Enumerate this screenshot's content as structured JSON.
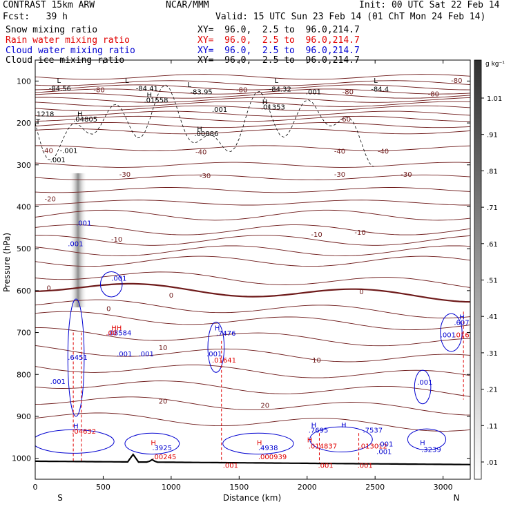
{
  "header": {
    "left_line1": "CONTRAST 15km ARW",
    "center_line1": "NCAR/MMM",
    "right_line1": "Init: 00 UTC Sat 22 Feb 14",
    "left_line2": "Fcst:   39 h",
    "right_line2": "Valid: 15 UTC Sun 23 Feb 14 (01 ChT Mon 24 Feb 14)",
    "fields": [
      {
        "name": "Snow mixing ratio",
        "xy": "XY=  96.0,  2.5 to  96.0,214.7",
        "color": "#000000"
      },
      {
        "name": "Rain water mixing ratio",
        "xy": "XY=  96.0,  2.5 to  96.0,214.7",
        "color": "#e00000"
      },
      {
        "name": "Cloud water mixing ratio",
        "xy": "XY=  96.0,  2.5 to  96.0,214.7",
        "color": "#0000d0"
      },
      {
        "name": "Cloud ice mixing ratio",
        "xy": "XY=  96.0,  2.5 to  96.0,214.7",
        "color": "#000000"
      }
    ]
  },
  "chart_data": {
    "type": "cross-section contour",
    "xlabel": "Distance (km)",
    "ylabel": "Pressure (hPa)",
    "xlim": [
      0,
      3200
    ],
    "ylim": [
      1050,
      50
    ],
    "x_ticks": [
      "0",
      "500",
      "1000",
      "1500",
      "2000",
      "2500",
      "3000"
    ],
    "y_ticks": [
      "100",
      "200",
      "300",
      "400",
      "500",
      "600",
      "700",
      "800",
      "900",
      "1000"
    ],
    "end_labels": {
      "left": "S",
      "right": "N"
    },
    "colorbar": {
      "unit": "g kg⁻¹",
      "ticks": [
        "1.01",
        ".91",
        ".81",
        ".71",
        ".61",
        ".51",
        ".41",
        ".31",
        ".21",
        ".11",
        ".01"
      ]
    },
    "temperature_contours": {
      "color": "#6e1a1a",
      "labeled_levels": [
        "-80",
        "-60",
        "-40",
        "-30",
        "-20",
        "-10",
        "0",
        "10",
        "20"
      ],
      "labels": [
        {
          "text": "-80",
          "x": 470,
          "p": 120
        },
        {
          "text": "-80",
          "x": 1520,
          "p": 120
        },
        {
          "text": "-80",
          "x": 2300,
          "p": 125
        },
        {
          "text": "-80",
          "x": 2930,
          "p": 130
        },
        {
          "text": "-80",
          "x": 3100,
          "p": 98
        },
        {
          "text": "-60",
          "x": 2280,
          "p": 190
        },
        {
          "text": "-40",
          "x": 90,
          "p": 265
        },
        {
          "text": "-40",
          "x": 1220,
          "p": 268
        },
        {
          "text": "-40",
          "x": 2240,
          "p": 267
        },
        {
          "text": "-40",
          "x": 2560,
          "p": 267
        },
        {
          "text": "-30",
          "x": 660,
          "p": 322
        },
        {
          "text": "-30",
          "x": 1250,
          "p": 325
        },
        {
          "text": "-30",
          "x": 2240,
          "p": 322
        },
        {
          "text": "-30",
          "x": 2730,
          "p": 322
        },
        {
          "text": "-20",
          "x": 110,
          "p": 380
        },
        {
          "text": "-10",
          "x": 600,
          "p": 477
        },
        {
          "text": "-10",
          "x": 2070,
          "p": 465
        },
        {
          "text": "-10",
          "x": 2390,
          "p": 460
        },
        {
          "text": "0",
          "x": 100,
          "p": 593
        },
        {
          "text": "0",
          "x": 1000,
          "p": 610
        },
        {
          "text": "0",
          "x": 2400,
          "p": 602
        },
        {
          "text": "0",
          "x": 540,
          "p": 642
        },
        {
          "text": "10",
          "x": 940,
          "p": 735
        },
        {
          "text": "10",
          "x": 2070,
          "p": 765
        },
        {
          "text": "20",
          "x": 940,
          "p": 863
        },
        {
          "text": "20",
          "x": 1690,
          "p": 873
        }
      ]
    },
    "extrema_labels": [
      {
        "text": "-84.56",
        "x": 100,
        "p": 117,
        "color": "#000000"
      },
      {
        "text": "-84.41",
        "x": 740,
        "p": 117,
        "color": "#000000"
      },
      {
        "text": "-83.95",
        "x": 1140,
        "p": 125,
        "color": "#000000"
      },
      {
        "text": "-84.32",
        "x": 1720,
        "p": 118,
        "color": "#000000"
      },
      {
        "text": "-84.4",
        "x": 2470,
        "p": 118,
        "color": "#000000"
      },
      {
        "text": ".01558",
        "x": 800,
        "p": 145,
        "color": "#000000"
      },
      {
        "text": ".001",
        "x": 1300,
        "p": 167,
        "color": "#000000"
      },
      {
        "text": ".01353",
        "x": 1660,
        "p": 161,
        "color": "#000000"
      },
      {
        "text": ".001",
        "x": 1990,
        "p": 125,
        "color": "#000000"
      },
      {
        "text": "1218",
        "x": 10,
        "p": 178,
        "color": "#000000"
      },
      {
        "text": ".04805",
        "x": 280,
        "p": 190,
        "color": "#000000"
      },
      {
        "text": ".00886",
        "x": 1170,
        "p": 225,
        "color": "#000000"
      },
      {
        "text": "-.001",
        "x": 180,
        "p": 265,
        "color": "#000000"
      },
      {
        "text": ".001",
        "x": 110,
        "p": 287,
        "color": "#000000"
      },
      {
        "text": ".001",
        "x": 300,
        "p": 438,
        "color": "#0000d0"
      },
      {
        "text": ".001",
        "x": 240,
        "p": 487,
        "color": "#0000d0"
      },
      {
        "text": ".001",
        "x": 560,
        "p": 570,
        "color": "#0000d0"
      },
      {
        "text": ".08584",
        "x": 530,
        "p": 700,
        "color": "#0000d0"
      },
      {
        "text": ".00",
        "x": 520,
        "p": 700,
        "color": "#e00000"
      },
      {
        "text": ".001",
        "x": 600,
        "p": 750,
        "color": "#0000d0"
      },
      {
        "text": ".001",
        "x": 760,
        "p": 750,
        "color": "#0000d0"
      },
      {
        "text": ".6451",
        "x": 240,
        "p": 758,
        "color": "#0000d0"
      },
      {
        "text": ".001",
        "x": 110,
        "p": 816,
        "color": "#0000d0"
      },
      {
        "text": ".7476",
        "x": 1330,
        "p": 701,
        "color": "#0000d0"
      },
      {
        "text": ".001",
        "x": 1260,
        "p": 750,
        "color": "#0000d0"
      },
      {
        "text": ".01641",
        "x": 1300,
        "p": 765,
        "color": "#e00000"
      },
      {
        "text": ".6071",
        "x": 3080,
        "p": 675,
        "color": "#0000d0"
      },
      {
        "text": ".001",
        "x": 2980,
        "p": 705,
        "color": "#0000d0"
      },
      {
        "text": ".0167",
        "x": 3080,
        "p": 705,
        "color": "#e00000"
      },
      {
        "text": ".001",
        "x": 2810,
        "p": 818,
        "color": "#0000d0"
      },
      {
        "text": ".04632",
        "x": 270,
        "p": 935,
        "color": "#e00000"
      },
      {
        "text": ".3925",
        "x": 860,
        "p": 974,
        "color": "#0000d0"
      },
      {
        "text": ".00245",
        "x": 860,
        "p": 996,
        "color": "#e00000"
      },
      {
        "text": ".4938",
        "x": 1640,
        "p": 974,
        "color": "#0000d0"
      },
      {
        "text": ".000939",
        "x": 1640,
        "p": 996,
        "color": "#e00000"
      },
      {
        "text": ".7695",
        "x": 2010,
        "p": 932,
        "color": "#0000d0"
      },
      {
        "text": ".014837",
        "x": 2010,
        "p": 970,
        "color": "#e00000"
      },
      {
        "text": ".7537",
        "x": 2410,
        "p": 932,
        "color": "#0000d0"
      },
      {
        "text": ".013012",
        "x": 2380,
        "p": 970,
        "color": "#e00000"
      },
      {
        "text": ".001",
        "x": 2520,
        "p": 965,
        "color": "#0000d0"
      },
      {
        "text": ".001",
        "x": 2510,
        "p": 983,
        "color": "#0000d0"
      },
      {
        "text": ".3239",
        "x": 2840,
        "p": 978,
        "color": "#0000d0"
      },
      {
        "text": ".001",
        "x": 1380,
        "p": 1016,
        "color": "#e00000"
      },
      {
        "text": ".001",
        "x": 2080,
        "p": 1016,
        "color": "#e00000"
      },
      {
        "text": ".001",
        "x": 2370,
        "p": 1016,
        "color": "#e00000"
      }
    ],
    "extremum_markers": [
      {
        "text": "L",
        "x": 160,
        "p": 98,
        "color": "#000000"
      },
      {
        "text": "L",
        "x": 660,
        "p": 98,
        "color": "#000000"
      },
      {
        "text": "L",
        "x": 1120,
        "p": 108,
        "color": "#000000"
      },
      {
        "text": "L",
        "x": 1760,
        "p": 98,
        "color": "#000000"
      },
      {
        "text": "L",
        "x": 2490,
        "p": 98,
        "color": "#000000"
      },
      {
        "text": "H",
        "x": 820,
        "p": 132,
        "color": "#000000"
      },
      {
        "text": "H",
        "x": 1670,
        "p": 149,
        "color": "#000000"
      },
      {
        "text": "H",
        "x": 310,
        "p": 178,
        "color": "#000000"
      },
      {
        "text": "H",
        "x": 1190,
        "p": 214,
        "color": "#000000"
      },
      {
        "text": "T",
        "x": 5,
        "p": 196,
        "color": "#000000"
      },
      {
        "text": "HH",
        "x": 560,
        "p": 688,
        "color": "#e00000"
      },
      {
        "text": "H",
        "x": 1320,
        "p": 688,
        "color": "#0000d0"
      },
      {
        "text": "H",
        "x": 3120,
        "p": 662,
        "color": "#0000d0"
      },
      {
        "text": "H",
        "x": 280,
        "p": 922,
        "color": "#0000d0"
      },
      {
        "text": "H",
        "x": 850,
        "p": 962,
        "color": "#e00000"
      },
      {
        "text": "H",
        "x": 1630,
        "p": 962,
        "color": "#e00000"
      },
      {
        "text": "H",
        "x": 2030,
        "p": 920,
        "color": "#0000d0"
      },
      {
        "text": "H",
        "x": 2000,
        "p": 955,
        "color": "#e00000"
      },
      {
        "text": "H",
        "x": 2250,
        "p": 920,
        "color": "#0000d0"
      },
      {
        "text": "H",
        "x": 2830,
        "p": 962,
        "color": "#0000d0"
      }
    ]
  }
}
